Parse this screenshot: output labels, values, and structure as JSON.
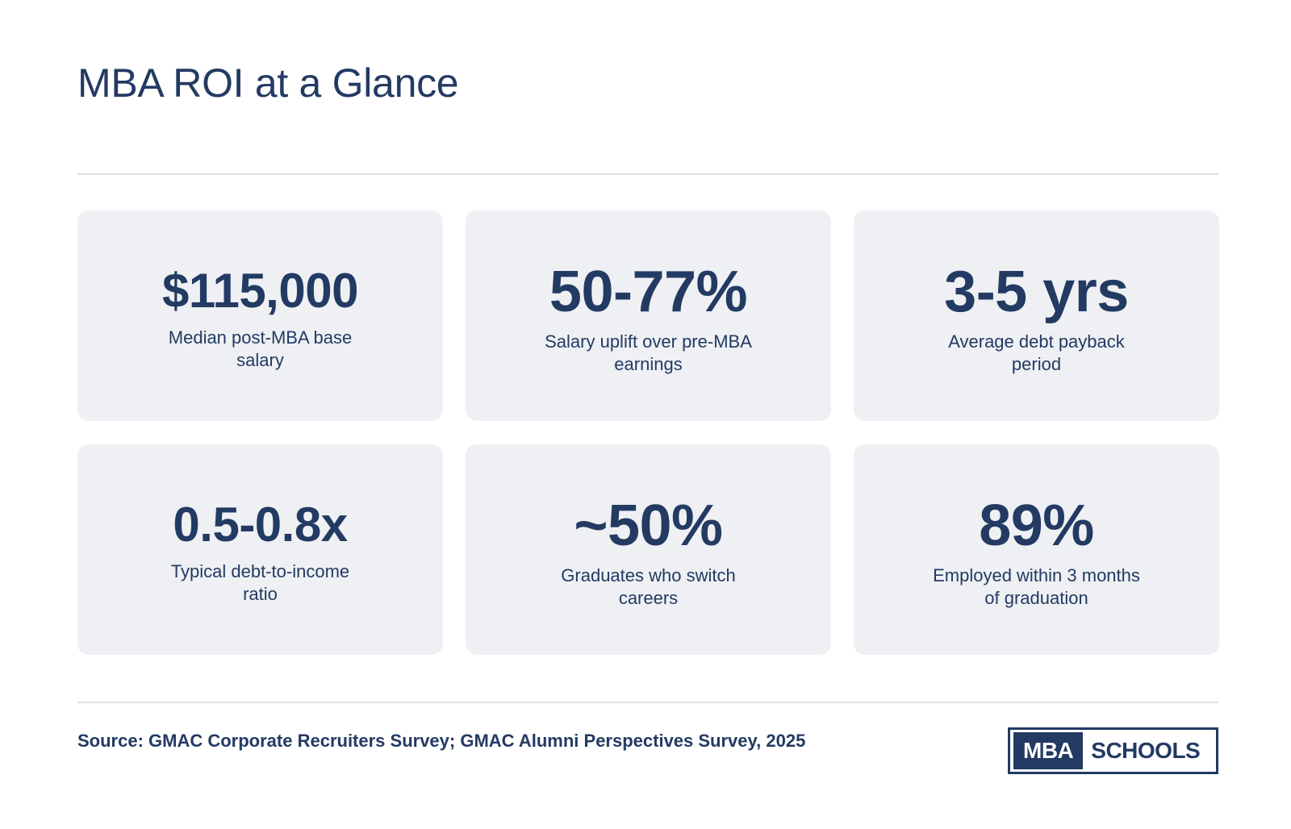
{
  "header": {
    "title": "MBA ROI at a Glance"
  },
  "stats": [
    {
      "value": "$115,000",
      "label": "Median post-MBA base salary"
    },
    {
      "value": "50-77%",
      "label": "Salary uplift over pre-MBA earnings"
    },
    {
      "value": "3-5 yrs",
      "label": "Average debt payback period"
    },
    {
      "value": "0.5-0.8x",
      "label": "Typical debt-to-income ratio"
    },
    {
      "value": "~50%",
      "label": "Graduates who switch careers"
    },
    {
      "value": "89%",
      "label": "Employed within 3 months of graduation"
    }
  ],
  "footer": {
    "source": "Source: GMAC Corporate Recruiters Survey; GMAC Alumni Perspectives Survey, 2025",
    "logo": {
      "part1": "MBA",
      "part2": "SCHOOLS"
    }
  },
  "colors": {
    "primary": "#233a63",
    "card_background": "#eef0f3",
    "divider": "#dcdee3"
  }
}
